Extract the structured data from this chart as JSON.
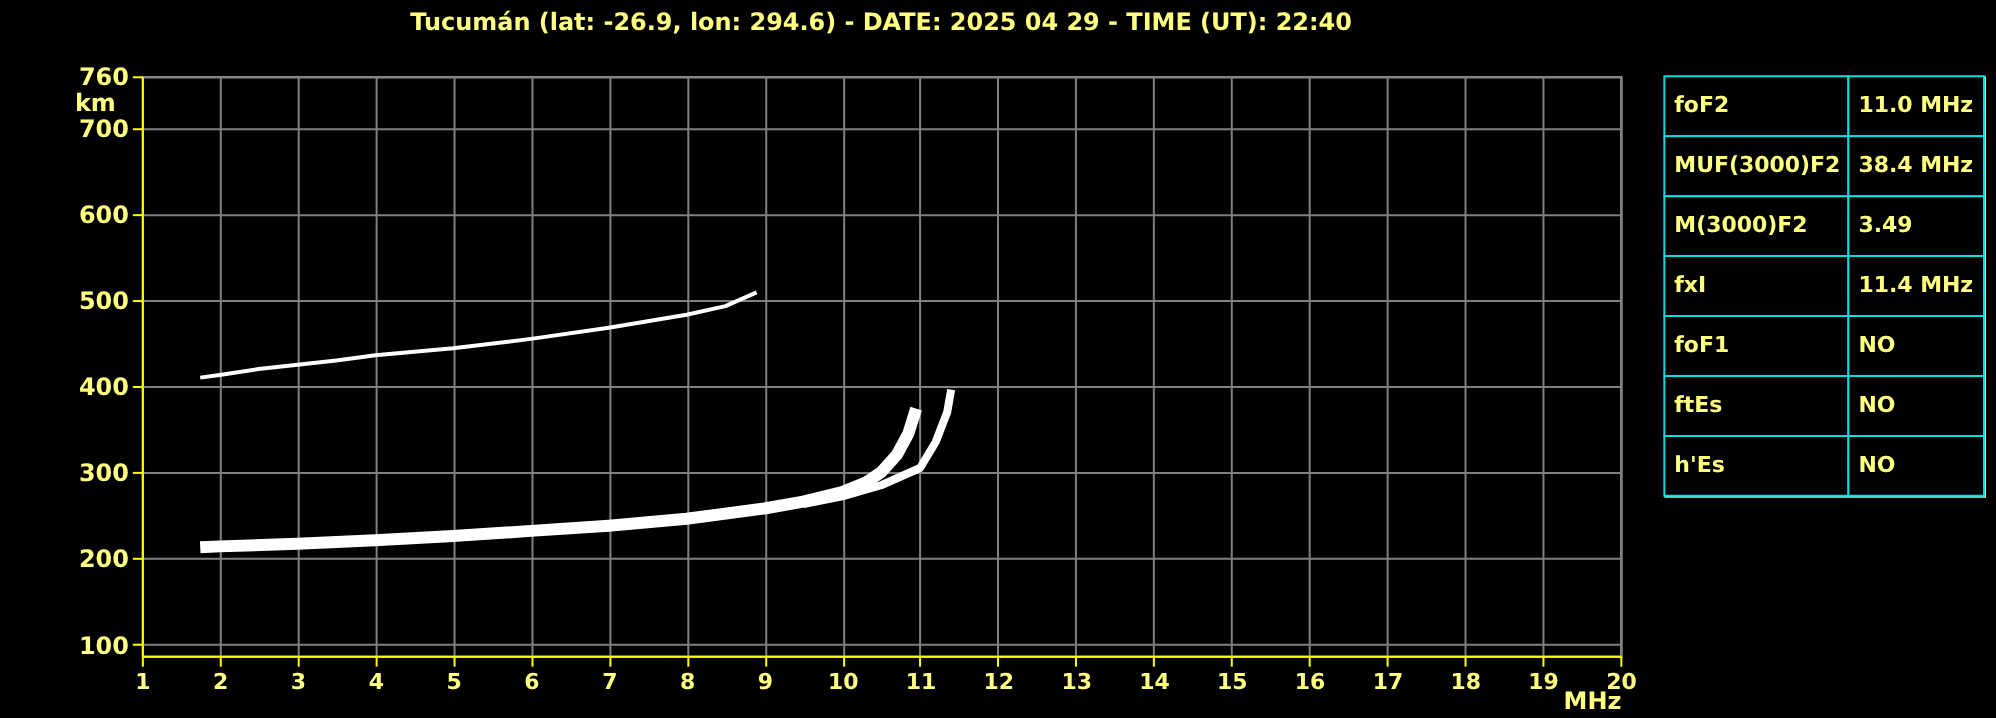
{
  "chart_data": [
    {
      "type": "line",
      "title": "Tucumán (lat: -26.9, lon: 294.6) - DATE: 2025 04 29 - TIME (UT): 22:40",
      "xlabel": "MHz",
      "ylabel": "km",
      "xlim": [
        1,
        20
      ],
      "xticks": [
        1,
        2,
        3,
        4,
        5,
        6,
        7,
        8,
        9,
        10,
        11,
        12,
        13,
        14,
        15,
        16,
        17,
        18,
        19,
        20
      ],
      "ylim": [
        87,
        760
      ],
      "yticks": [
        100,
        200,
        300,
        400,
        500,
        600,
        700,
        760
      ],
      "grid": true,
      "series": [
        {
          "color": "#ffffff",
          "x": [
            1.75,
            2,
            3,
            4,
            5,
            6,
            7,
            8,
            9,
            9.5,
            10,
            10.3,
            10.5,
            10.7,
            10.85,
            10.95
          ],
          "values": [
            213,
            214,
            217,
            221,
            226,
            232,
            238,
            246,
            258,
            266,
            277,
            288,
            300,
            320,
            345,
            374
          ]
        },
        {
          "color": "#ffffff",
          "x": [
            9.5,
            10,
            10.5,
            11,
            11.2,
            11.35,
            11.4
          ],
          "values": [
            263,
            272,
            285,
            305,
            335,
            370,
            396
          ]
        },
        {
          "color": "#ffffff",
          "x": [
            1.75,
            2,
            2.5,
            3,
            3.5,
            4,
            5,
            6,
            7,
            8,
            8.5,
            8.9
          ],
          "values": [
            410,
            413,
            420,
            425,
            430,
            436,
            444,
            455,
            468,
            483,
            493,
            509
          ]
        }
      ]
    },
    {
      "type": "other",
      "categories": [
        "foF2",
        "MUF(3000)F2",
        "M(3000)F2",
        "fxI",
        "foF1",
        "ftEs",
        "h'Es"
      ],
      "value_labels": [
        "11.0 MHz",
        "38.4 MHz",
        "3.49",
        "11.4 MHz",
        "NO",
        "NO",
        "NO"
      ]
    }
  ]
}
